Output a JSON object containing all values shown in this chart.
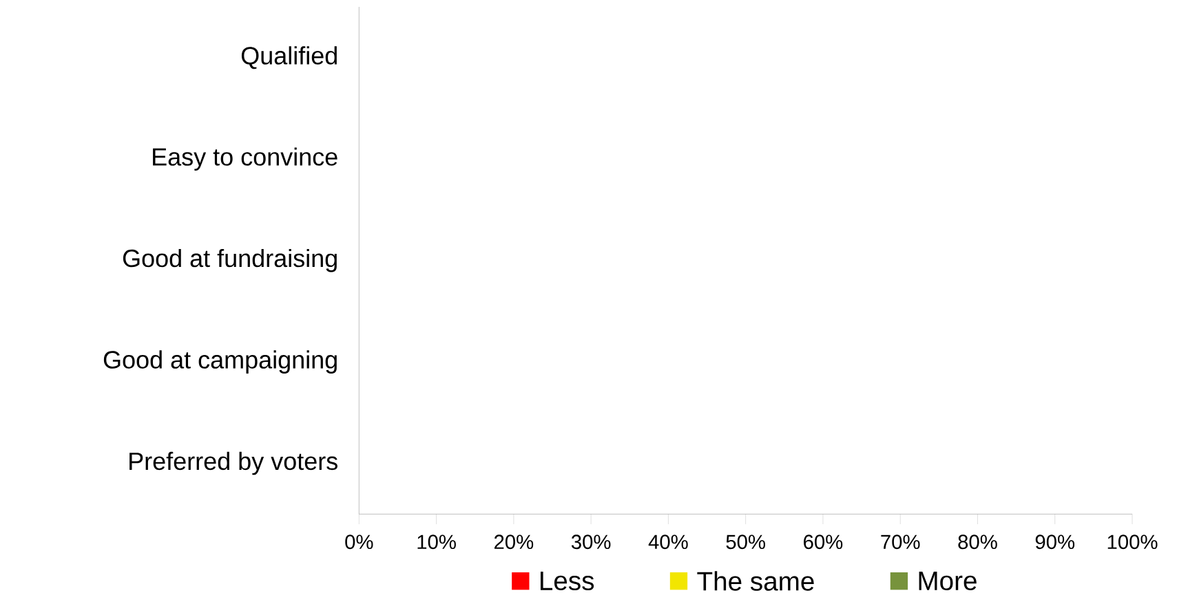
{
  "chart_data": {
    "type": "bar",
    "orientation": "horizontal",
    "categories": [
      "Qualified",
      "Easy to convince",
      "Good at fundraising",
      "Good at campaigning",
      "Preferred by voters"
    ],
    "series": [
      {
        "name": "Less",
        "color": "#ff0000",
        "values": [
          null,
          null,
          null,
          null,
          null
        ]
      },
      {
        "name": "The same",
        "color": "#f2e600",
        "values": [
          null,
          null,
          null,
          null,
          null
        ]
      },
      {
        "name": "More",
        "color": "#77933c",
        "values": [
          null,
          null,
          null,
          null,
          null
        ]
      }
    ],
    "xlim": [
      0,
      100
    ],
    "xticks": [
      {
        "value": 0,
        "label": "0%"
      },
      {
        "value": 10,
        "label": "10%"
      },
      {
        "value": 20,
        "label": "20%"
      },
      {
        "value": 30,
        "label": "30%"
      },
      {
        "value": 40,
        "label": "40%"
      },
      {
        "value": 50,
        "label": "50%"
      },
      {
        "value": 60,
        "label": "60%"
      },
      {
        "value": 70,
        "label": "70%"
      },
      {
        "value": 80,
        "label": "80%"
      },
      {
        "value": 90,
        "label": "90%"
      },
      {
        "value": 100,
        "label": "100%"
      }
    ],
    "legend": "bottom"
  }
}
